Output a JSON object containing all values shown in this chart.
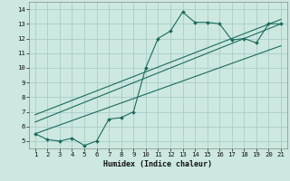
{
  "title": "",
  "xlabel": "Humidex (Indice chaleur)",
  "bg_color": "#cce8e0",
  "grid_color": "#aacccc",
  "line_color": "#1a6b5e",
  "xlim": [
    0.5,
    21.5
  ],
  "ylim": [
    4.5,
    14.5
  ],
  "xticks": [
    1,
    2,
    3,
    4,
    5,
    6,
    7,
    8,
    9,
    10,
    11,
    12,
    13,
    14,
    15,
    16,
    17,
    18,
    19,
    20,
    21
  ],
  "yticks": [
    5,
    6,
    7,
    8,
    9,
    10,
    11,
    12,
    13,
    14
  ],
  "data_x": [
    1,
    2,
    3,
    4,
    5,
    6,
    7,
    8,
    9,
    10,
    11,
    12,
    13,
    14,
    15,
    16,
    17,
    18,
    19,
    20,
    21
  ],
  "data_y": [
    5.5,
    5.1,
    5.0,
    5.2,
    4.7,
    5.0,
    6.5,
    6.6,
    7.0,
    10.0,
    12.0,
    12.5,
    13.8,
    13.1,
    13.1,
    13.0,
    11.9,
    12.0,
    11.7,
    13.0,
    13.0
  ],
  "trend1_x": [
    1,
    21
  ],
  "trend1_y": [
    5.5,
    11.5
  ],
  "trend2_x": [
    1,
    21
  ],
  "trend2_y": [
    6.3,
    13.0
  ],
  "trend3_x": [
    1,
    21
  ],
  "trend3_y": [
    6.8,
    13.3
  ],
  "figsize": [
    3.2,
    2.0
  ],
  "dpi": 100
}
